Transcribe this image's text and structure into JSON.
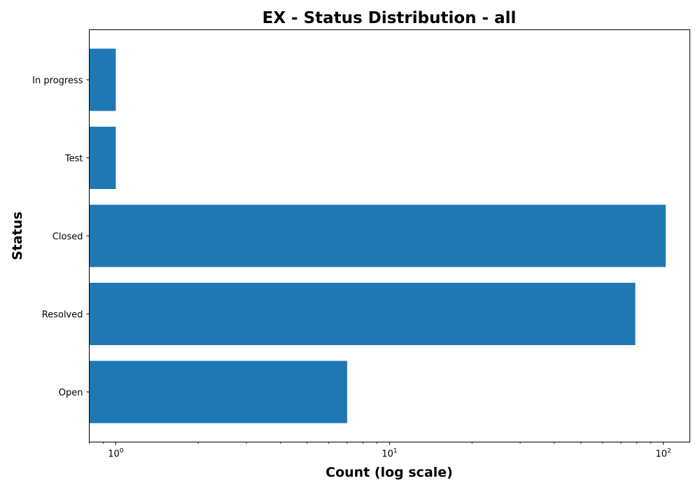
{
  "chart_data": {
    "type": "bar",
    "orientation": "horizontal",
    "title": "EX - Status Distribution - all",
    "xlabel": "Count (log scale)",
    "ylabel": "Status",
    "xscale": "log",
    "xlim": [
      0.8,
      125
    ],
    "xticks": [
      {
        "value": 1,
        "base": "10",
        "exp": "0"
      },
      {
        "value": 10,
        "base": "10",
        "exp": "1"
      },
      {
        "value": 100,
        "base": "10",
        "exp": "2"
      }
    ],
    "categories": [
      "In progress",
      "Test",
      "Closed",
      "Resolved",
      "Open"
    ],
    "values": [
      1,
      1,
      102,
      79,
      7
    ],
    "bar_color": "#1f77b4",
    "grid": false,
    "legend": "none"
  }
}
